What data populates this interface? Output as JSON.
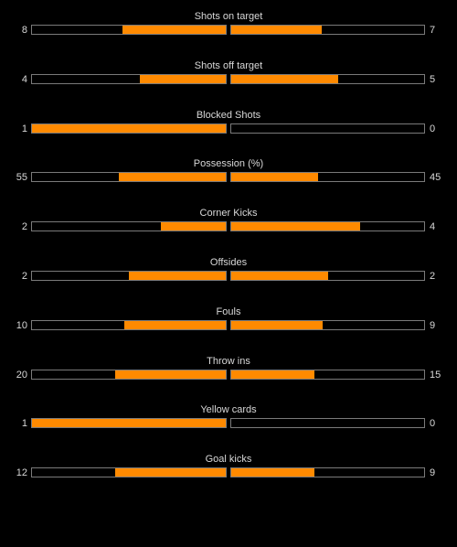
{
  "colors": {
    "background": "#000000",
    "fill": "#ff8a00",
    "border": "#7a7a7a",
    "text": "#d8d8d8"
  },
  "stats": [
    {
      "label": "Shots on target",
      "home": "8",
      "away": "7",
      "home_fraction": 0.533,
      "away_fraction": 0.467
    },
    {
      "label": "Shots off target",
      "home": "4",
      "away": "5",
      "home_fraction": 0.444,
      "away_fraction": 0.556
    },
    {
      "label": "Blocked Shots",
      "home": "1",
      "away": "0",
      "home_fraction": 1.0,
      "away_fraction": 0.0
    },
    {
      "label": "Possession (%)",
      "home": "55",
      "away": "45",
      "home_fraction": 0.55,
      "away_fraction": 0.45
    },
    {
      "label": "Corner Kicks",
      "home": "2",
      "away": "4",
      "home_fraction": 0.333,
      "away_fraction": 0.667
    },
    {
      "label": "Offsides",
      "home": "2",
      "away": "2",
      "home_fraction": 0.5,
      "away_fraction": 0.5
    },
    {
      "label": "Fouls",
      "home": "10",
      "away": "9",
      "home_fraction": 0.526,
      "away_fraction": 0.474
    },
    {
      "label": "Throw ins",
      "home": "20",
      "away": "15",
      "home_fraction": 0.571,
      "away_fraction": 0.429
    },
    {
      "label": "Yellow cards",
      "home": "1",
      "away": "0",
      "home_fraction": 1.0,
      "away_fraction": 0.0
    },
    {
      "label": "Goal kicks",
      "home": "12",
      "away": "9",
      "home_fraction": 0.571,
      "away_fraction": 0.429
    }
  ]
}
